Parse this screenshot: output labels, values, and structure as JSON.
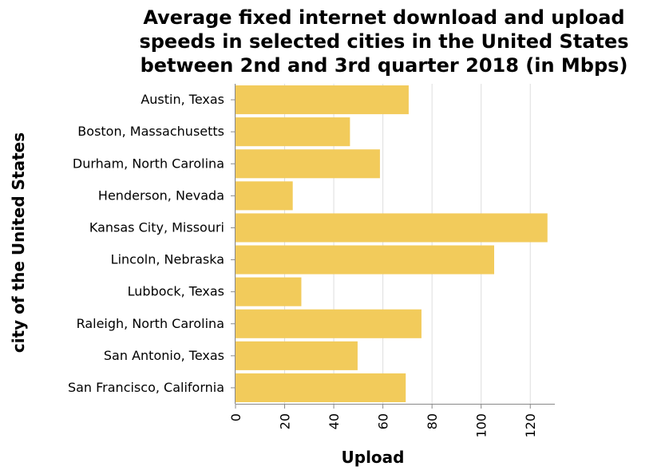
{
  "chart_data": {
    "type": "bar",
    "orientation": "horizontal",
    "title": [
      "Average fixed internet download and upload",
      "speeds in selected cities in the United States",
      "between 2nd and 3rd quarter 2018 (in Mbps)"
    ],
    "xlabel": "Upload",
    "ylabel": "city of the United States",
    "categories": [
      "Austin, Texas",
      "Boston, Massachusetts",
      "Durham, North Carolina",
      "Henderson, Nevada",
      "Kansas City, Missouri",
      "Lincoln, Nebraska",
      "Lubbock, Texas",
      "Raleigh, North Carolina",
      "San Antonio, Texas",
      "San Francisco, California"
    ],
    "values": [
      70.5,
      46.6,
      58.8,
      23.3,
      127.0,
      105.3,
      26.8,
      75.7,
      49.7,
      69.3
    ],
    "xlim": [
      0,
      130
    ],
    "xticks": [
      0,
      20,
      40,
      60,
      80,
      100,
      120
    ],
    "grid": true,
    "colors": {
      "bar": "#f2cb5b",
      "grid": "#dddddd",
      "axis": "#888888"
    }
  }
}
